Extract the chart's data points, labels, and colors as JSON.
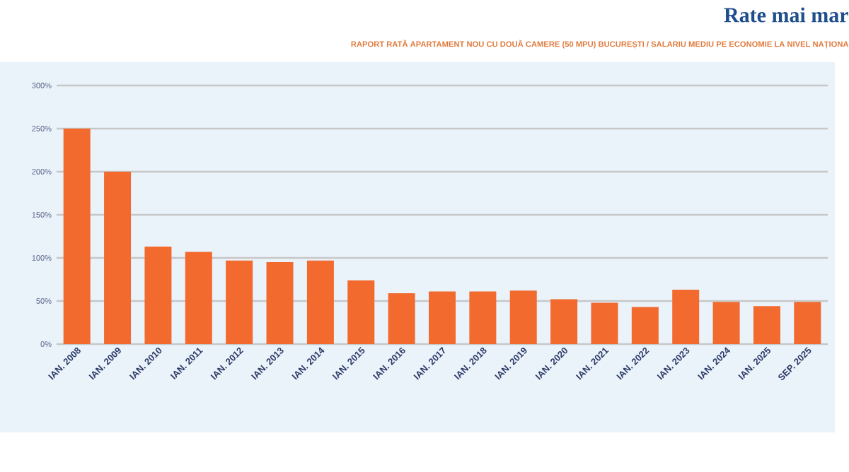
{
  "chart_data": {
    "type": "bar",
    "title": "Rate mai mar",
    "subtitle": "RAPORT RATĂ APARTAMENT NOU CU DOUĂ CAMERE (50 MPU) BUCUREȘTI / SALARIU MEDIU PE ECONOMIE LA NIVEL NAȚIONA",
    "categories": [
      "IAN. 2008",
      "IAN. 2009",
      "IAN. 2010",
      "IAN. 2011",
      "IAN. 2012",
      "IAN. 2013",
      "IAN. 2014",
      "IAN. 2015",
      "IAN. 2016",
      "IAN. 2017",
      "IAN. 2018",
      "IAN. 2019",
      "IAN. 2020",
      "IAN. 2021",
      "IAN. 2022",
      "IAN. 2023",
      "IAN. 2024",
      "IAN. 2025",
      "SEP. 2025"
    ],
    "values": [
      250,
      200,
      113,
      107,
      97,
      95,
      97,
      74,
      59,
      61,
      61,
      62,
      52,
      48,
      43,
      63,
      49,
      44,
      49
    ],
    "color": "#f26a2e",
    "ylim": [
      0,
      300
    ],
    "yticks": [
      {
        "value": 0,
        "label": "0%"
      },
      {
        "value": 50,
        "label": "50%"
      },
      {
        "value": 100,
        "label": "100%"
      },
      {
        "value": 150,
        "label": "150%"
      },
      {
        "value": 200,
        "label": "200%"
      },
      {
        "value": 250,
        "label": "250%"
      },
      {
        "value": 300,
        "label": "300%"
      }
    ],
    "grid": "y"
  }
}
